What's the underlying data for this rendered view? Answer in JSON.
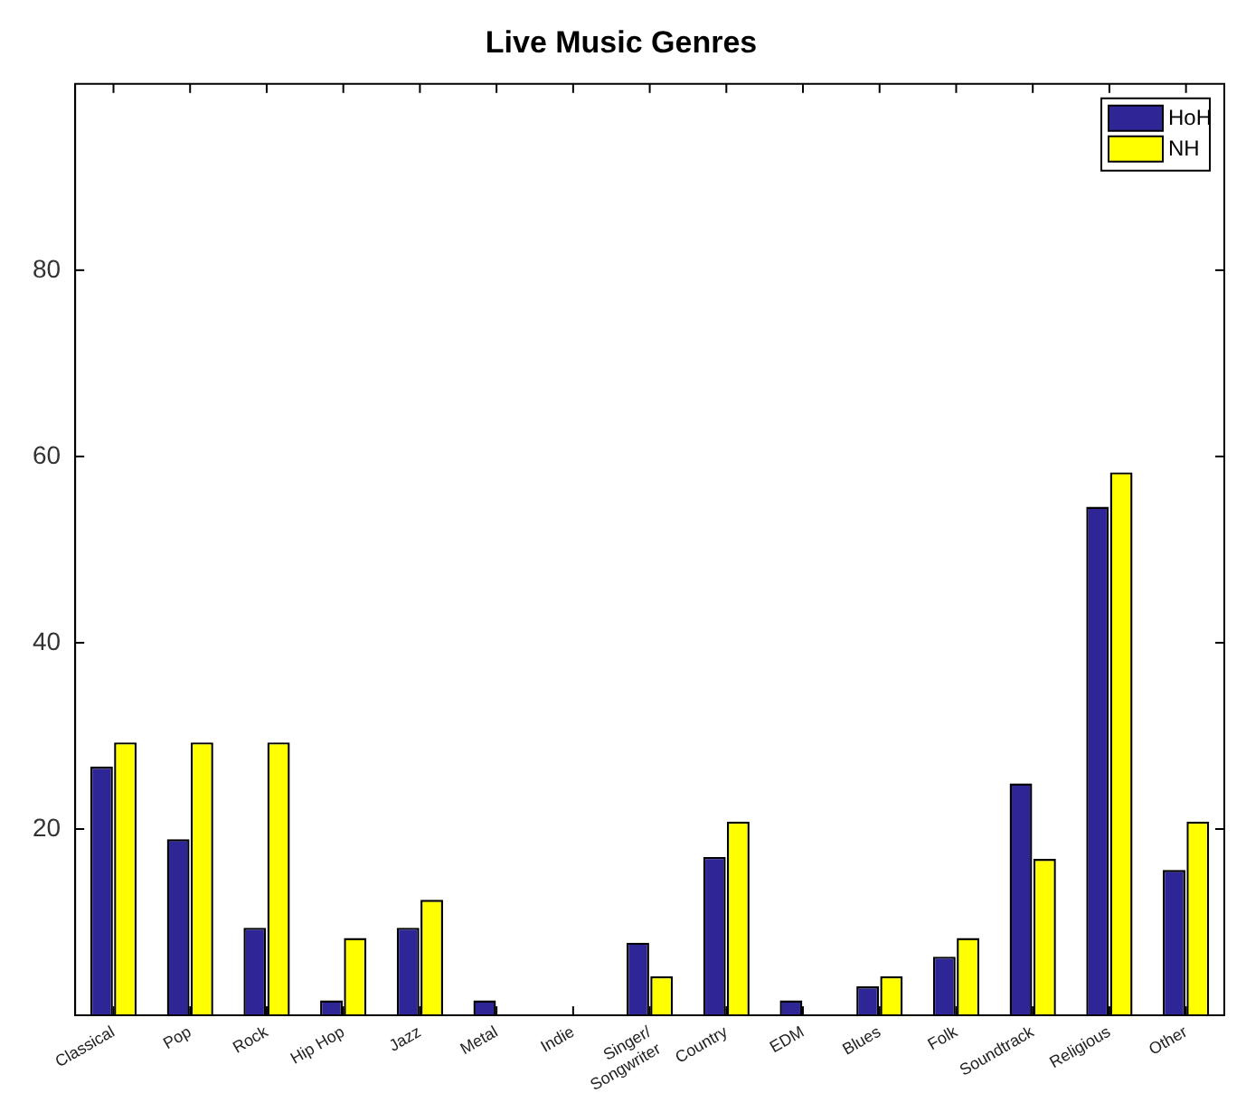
{
  "chart_data": {
    "type": "bar",
    "title": "Live Music Genres",
    "categories": [
      "Classical",
      "Pop",
      "Rock",
      "Hip Hop",
      "Jazz",
      "Metal",
      "Indie",
      "Singer/\nSongwriter",
      "Country",
      "EDM",
      "Blues",
      "Folk",
      "Soundtrack",
      "Religious",
      "Other"
    ],
    "series": [
      {
        "name": "HoH",
        "color": "#2e2596",
        "values": [
          26.7,
          18.9,
          9.4,
          1.6,
          9.4,
          1.6,
          0,
          7.8,
          17.0,
          1.6,
          3.1,
          6.3,
          24.9,
          54.6,
          15.6
        ]
      },
      {
        "name": "NH",
        "color": "#ffff00",
        "values": [
          29.3,
          29.3,
          29.3,
          8.3,
          12.4,
          0,
          0,
          4.2,
          20.8,
          0,
          4.2,
          8.3,
          16.8,
          58.3,
          20.8
        ]
      }
    ],
    "ylim": [
      0,
      100
    ],
    "yticks": [
      20,
      40,
      60,
      80
    ],
    "grid": false,
    "legend": "top right"
  }
}
